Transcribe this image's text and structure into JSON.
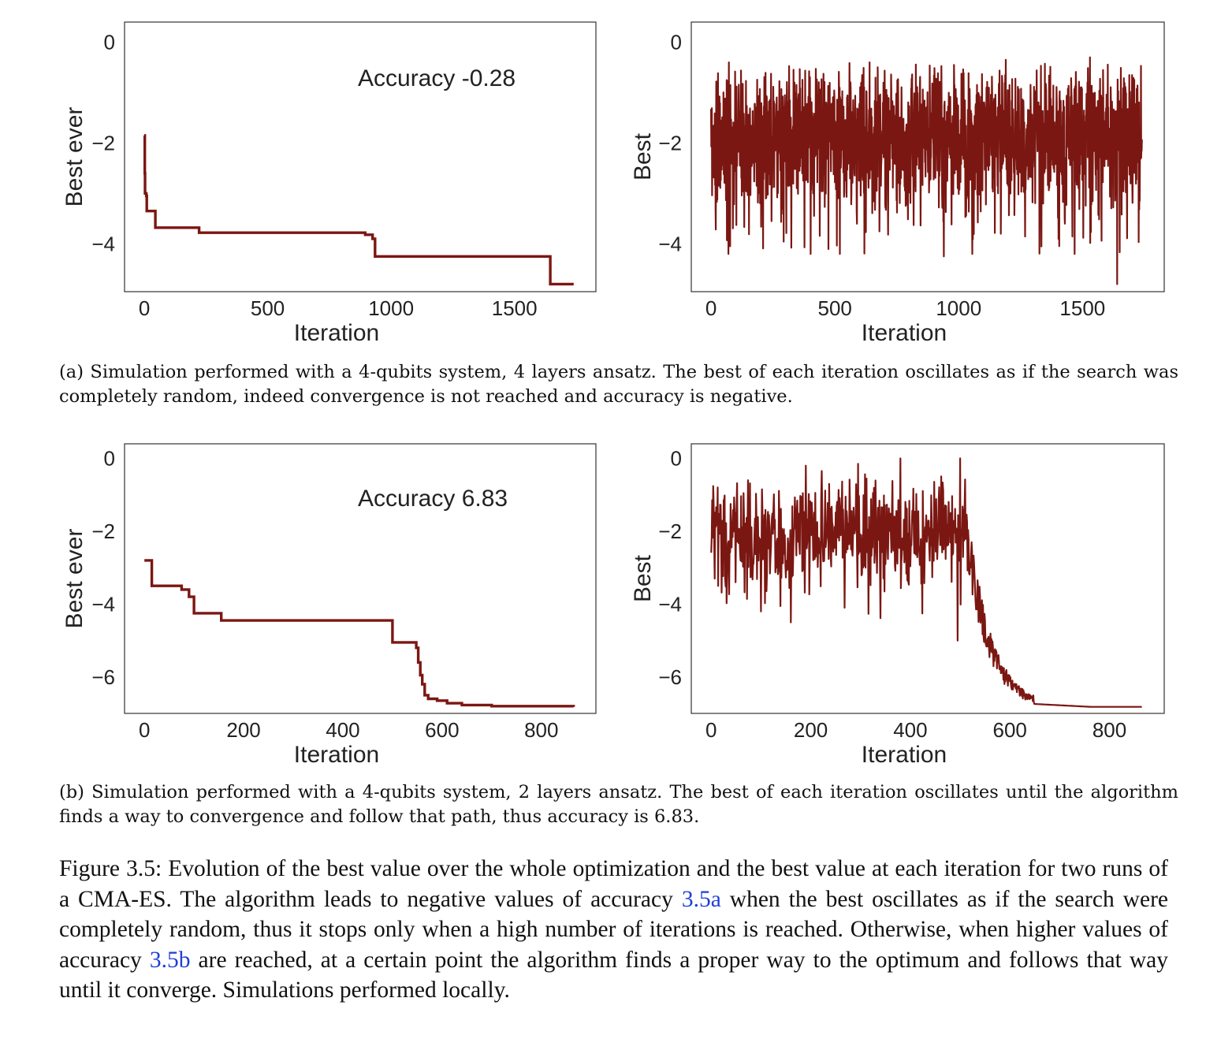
{
  "line_color": "#7b1712",
  "ref_color": "#1f3fd6",
  "chart_data": [
    {
      "id": "a-left",
      "type": "line",
      "xlabel": "Iteration",
      "ylabel": "Best ever",
      "annotation": "Accuracy -0.28",
      "xlim": [
        -80,
        1830
      ],
      "ylim": [
        -4.95,
        0.4
      ],
      "xticks": [
        0,
        500,
        1000,
        1500
      ],
      "yticks": [
        0,
        -2,
        -4
      ],
      "series": [
        {
          "kind": "step",
          "x": [
            0,
            2,
            3,
            8,
            10,
            15,
            40,
            45,
            220,
            222,
            890,
            895,
            915,
            925,
            935,
            1640,
            1645,
            1740
          ],
          "y": [
            -1.85,
            -2.6,
            -3.0,
            -3.05,
            -3.35,
            -3.35,
            -3.35,
            -3.68,
            -3.68,
            -3.78,
            -3.78,
            -3.82,
            -3.82,
            -3.9,
            -4.25,
            -4.25,
            -4.8,
            -4.8
          ]
        }
      ]
    },
    {
      "id": "a-right",
      "type": "line",
      "xlabel": "Iteration",
      "ylabel": "Best",
      "xlim": [
        -80,
        1830
      ],
      "ylim": [
        -4.95,
        0.4
      ],
      "xticks": [
        0,
        500,
        1000,
        1500
      ],
      "yticks": [
        0,
        -2,
        -4
      ],
      "series": [
        {
          "kind": "noise",
          "n": 1740,
          "x_end": 1740,
          "center": -1.9,
          "spread": 0.55,
          "min": -4.2,
          "max": -0.4,
          "spikes": [
            [
              940,
              -4.25
            ],
            [
              1640,
              -4.8
            ],
            [
              1190,
              -0.35
            ],
            [
              1530,
              -0.3
            ],
            [
              1170,
              -3.8
            ],
            [
              75,
              -3.6
            ]
          ]
        }
      ]
    },
    {
      "id": "b-left",
      "type": "line",
      "xlabel": "Iteration",
      "ylabel": "Best ever",
      "annotation": "Accuracy 6.83",
      "xlim": [
        -40,
        910
      ],
      "ylim": [
        -7.0,
        0.4
      ],
      "xticks": [
        0,
        200,
        400,
        600,
        800
      ],
      "yticks": [
        0,
        -2,
        -4,
        -6
      ],
      "series": [
        {
          "kind": "step",
          "x": [
            0,
            10,
            15,
            70,
            75,
            90,
            100,
            150,
            155,
            495,
            500,
            545,
            548,
            552,
            556,
            560,
            565,
            572,
            590,
            610,
            640,
            700,
            865
          ],
          "y": [
            -2.8,
            -2.8,
            -3.5,
            -3.5,
            -3.6,
            -3.8,
            -4.25,
            -4.25,
            -4.45,
            -4.45,
            -5.05,
            -5.05,
            -5.2,
            -5.6,
            -5.95,
            -6.2,
            -6.5,
            -6.6,
            -6.65,
            -6.72,
            -6.77,
            -6.8,
            -6.82
          ]
        }
      ]
    },
    {
      "id": "b-right",
      "type": "line",
      "xlabel": "Iteration",
      "ylabel": "Best",
      "xlim": [
        -40,
        910
      ],
      "ylim": [
        -7.0,
        0.4
      ],
      "xticks": [
        0,
        200,
        400,
        600,
        800
      ],
      "yticks": [
        0,
        -2,
        -4,
        -6
      ],
      "series": [
        {
          "kind": "noise-converge",
          "n": 865,
          "x_end": 865,
          "noise_end": 515,
          "center": -2.05,
          "spread": 0.6,
          "min": -4.5,
          "max": -0.1,
          "converge_to": -6.82,
          "spikes": [
            [
              380,
              0.0
            ],
            [
              190,
              -0.2
            ],
            [
              500,
              0.0
            ],
            [
              295,
              -0.15
            ],
            [
              160,
              -4.5
            ],
            [
              495,
              -5.0
            ],
            [
              100,
              -4.2
            ]
          ]
        }
      ]
    }
  ],
  "subcaption_a": "(a) Simulation performed with a 4-qubits system, 4 layers ansatz. The best of each iteration oscillates as if the search was completely random, indeed convergence is not reached and accuracy is negative.",
  "subcaption_b": "(b) Simulation performed with a 4-qubits system, 2 layers ansatz. The best of each iteration oscillates until the algorithm finds a way to convergence and follow that path, thus accuracy is 6.83.",
  "figure_caption": {
    "part1": "Figure 3.5: Evolution of the best value over the whole optimization and the best value at each iteration for two runs of a CMA-ES. The algorithm leads to negative values of accuracy ",
    "ref_a": "3.5a",
    "part2": " when the best oscillates as if the search were completely random, thus it stops only when a high number of iterations is reached. Otherwise, when higher values of accuracy ",
    "ref_b": "3.5b",
    "part3": " are reached, at a certain point the algorithm finds a proper way to the optimum and follows that way until it converge. Simulations performed locally."
  }
}
